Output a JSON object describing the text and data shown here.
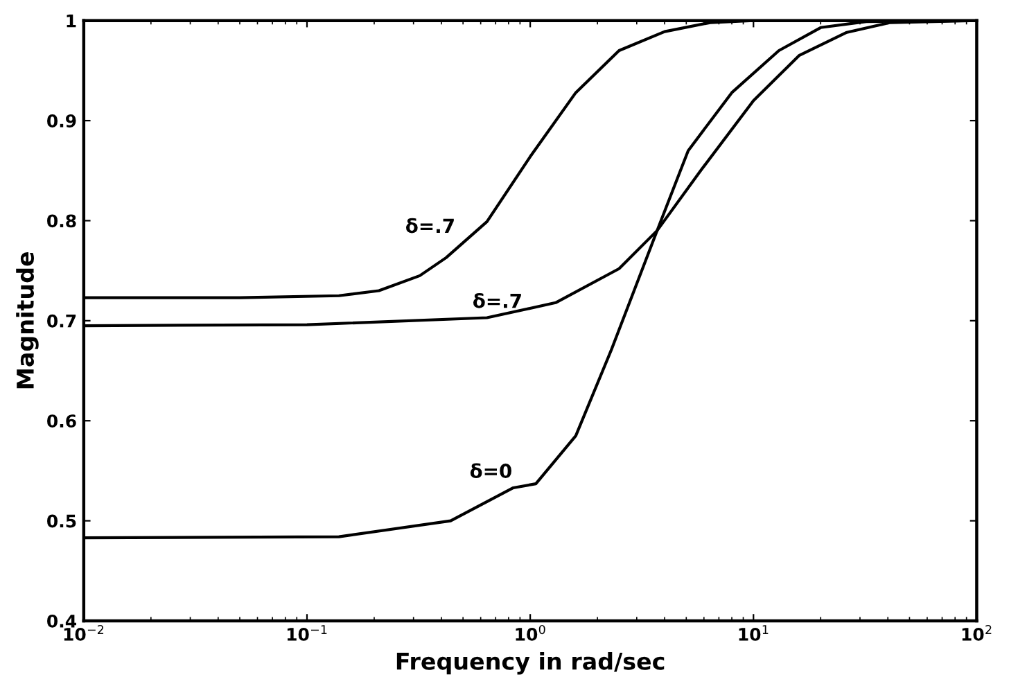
{
  "chart_data": {
    "type": "line",
    "xlabel": "Frequency in rad/sec",
    "ylabel": "Magnitude",
    "xlim": [
      0.01,
      100
    ],
    "ylim": [
      0.4,
      1
    ],
    "xticks": [
      {
        "value": 0.01,
        "label": "10$^{−2}$"
      },
      {
        "value": 0.1,
        "label": "10$^{−1}$"
      },
      {
        "value": 1,
        "label": "10$^{0}$"
      },
      {
        "value": 10,
        "label": "10$^{1}$"
      },
      {
        "value": 100,
        "label": "10$^{2}$"
      }
    ],
    "yticks": [
      0.4,
      0.5,
      0.6,
      0.7,
      0.8,
      0.9,
      {
        "value": 1,
        "label": "1"
      }
    ],
    "log": "x",
    "grid": false,
    "legend": false,
    "marker": "none",
    "line_style": "solid",
    "series": [
      {
        "color": "#000000",
        "x": [
          0.01,
          0.05,
          0.139,
          0.21,
          0.32,
          0.42,
          0.64,
          1.0,
          1.6,
          2.5,
          4.0,
          6.4,
          10,
          100
        ],
        "values": [
          0.723,
          0.723,
          0.725,
          0.73,
          0.745,
          0.763,
          0.799,
          0.864,
          0.928,
          0.97,
          0.989,
          0.998,
          1.0,
          1.0
        ]
      },
      {
        "color": "#000000",
        "x": [
          0.01,
          0.1,
          0.64,
          1.3,
          2.5,
          3.7,
          5.8,
          10,
          16,
          26,
          41,
          100
        ],
        "values": [
          0.695,
          0.696,
          0.703,
          0.718,
          0.752,
          0.79,
          0.85,
          0.92,
          0.965,
          0.988,
          0.998,
          1.0
        ]
      },
      {
        "color": "#000000",
        "x": [
          0.01,
          0.139,
          0.44,
          0.84,
          1.06,
          1.6,
          2.3,
          3.7,
          5.1,
          8.0,
          13,
          20,
          32,
          100
        ],
        "values": [
          0.483,
          0.484,
          0.5,
          0.533,
          0.537,
          0.585,
          0.67,
          0.79,
          0.87,
          0.928,
          0.97,
          0.993,
          0.999,
          1.0
        ]
      }
    ],
    "annotations": [
      {
        "text": "δ=.7",
        "x": 0.5,
        "y": 0.78
      },
      {
        "text": "δ=.7",
        "x": 1.0,
        "y": 0.705
      },
      {
        "text": "δ=0",
        "x": 0.9,
        "y": 0.535
      }
    ]
  }
}
